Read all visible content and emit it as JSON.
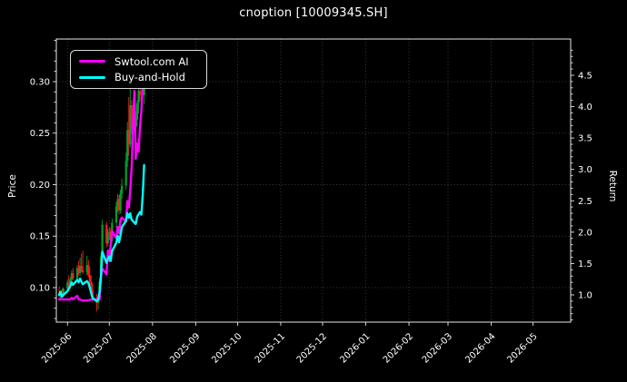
{
  "chart_data": {
    "type": "mixed",
    "subtype": "candlestick-with-lines",
    "title": "cnoption [10009345.SH]",
    "left_axis": {
      "label": "Price",
      "ticks": [
        0.1,
        0.15,
        0.2,
        0.25,
        0.3
      ],
      "range": [
        0.0665,
        0.3414
      ],
      "minor_step": 0.01
    },
    "right_axis": {
      "label": "Return",
      "ticks": [
        1.0,
        1.5,
        2.0,
        2.5,
        3.0,
        3.5,
        4.0,
        4.5
      ],
      "range": [
        0.566,
        5.078
      ],
      "minor_step": 0.1
    },
    "x_axis": {
      "tick_labels": [
        "2025-06",
        "2025-07",
        "2025-08",
        "2025-09",
        "2025-10",
        "2025-11",
        "2025-12",
        "2026-01",
        "2026-02",
        "2026-03",
        "2026-04",
        "2026-05"
      ],
      "tick_days": [
        8,
        38,
        69,
        100,
        130,
        161,
        191,
        222,
        253,
        281,
        312,
        342
      ],
      "range_days": [
        0,
        369
      ],
      "epoch": "2025-05-24"
    },
    "grid": {
      "on": true,
      "style": "dotted"
    },
    "legend": {
      "position": "upper-left",
      "entries": [
        {
          "label": "Swtool.com AI",
          "color": "#ff00ff"
        },
        {
          "label": "Buy-and-Hold",
          "color": "#00ffff"
        }
      ]
    },
    "colors": {
      "background": "#000000",
      "text": "#ffffff",
      "grid": "#3a3a3a",
      "spine": "#e8e8e8",
      "up_candle": "#00a12b",
      "down_candle": "#f22020"
    },
    "candles": [
      [
        2,
        0.095,
        0.101,
        0.09,
        0.092
      ],
      [
        3,
        0.092,
        0.097,
        0.088,
        0.096
      ],
      [
        4,
        0.096,
        0.099,
        0.091,
        0.093
      ],
      [
        5,
        0.093,
        0.1,
        0.092,
        0.099
      ],
      [
        8,
        0.099,
        0.108,
        0.096,
        0.105
      ],
      [
        9,
        0.105,
        0.112,
        0.1,
        0.103
      ],
      [
        10,
        0.103,
        0.11,
        0.099,
        0.108
      ],
      [
        11,
        0.108,
        0.117,
        0.105,
        0.114
      ],
      [
        12,
        0.114,
        0.119,
        0.107,
        0.109
      ],
      [
        15,
        0.109,
        0.122,
        0.106,
        0.119
      ],
      [
        16,
        0.119,
        0.126,
        0.112,
        0.114
      ],
      [
        17,
        0.114,
        0.129,
        0.111,
        0.121
      ],
      [
        18,
        0.121,
        0.133,
        0.115,
        0.117
      ],
      [
        19,
        0.117,
        0.136,
        0.113,
        0.115
      ],
      [
        22,
        0.115,
        0.131,
        0.112,
        0.122
      ],
      [
        23,
        0.122,
        0.127,
        0.11,
        0.112
      ],
      [
        24,
        0.112,
        0.12,
        0.103,
        0.106
      ],
      [
        25,
        0.106,
        0.112,
        0.095,
        0.098
      ],
      [
        26,
        0.098,
        0.104,
        0.087,
        0.09
      ],
      [
        29,
        0.09,
        0.094,
        0.077,
        0.085
      ],
      [
        30,
        0.085,
        0.093,
        0.079,
        0.09
      ],
      [
        31,
        0.09,
        0.109,
        0.088,
        0.106
      ],
      [
        32,
        0.106,
        0.134,
        0.103,
        0.13
      ],
      [
        33,
        0.13,
        0.166,
        0.126,
        0.161
      ],
      [
        36,
        0.161,
        0.164,
        0.139,
        0.143
      ],
      [
        37,
        0.143,
        0.157,
        0.14,
        0.152
      ],
      [
        38,
        0.152,
        0.159,
        0.146,
        0.154
      ],
      [
        39,
        0.154,
        0.158,
        0.142,
        0.146
      ],
      [
        40,
        0.146,
        0.167,
        0.144,
        0.163
      ],
      [
        43,
        0.163,
        0.183,
        0.158,
        0.179
      ],
      [
        44,
        0.179,
        0.191,
        0.173,
        0.186
      ],
      [
        45,
        0.186,
        0.19,
        0.171,
        0.175
      ],
      [
        46,
        0.175,
        0.195,
        0.172,
        0.191
      ],
      [
        47,
        0.191,
        0.206,
        0.186,
        0.199
      ],
      [
        50,
        0.199,
        0.231,
        0.195,
        0.223
      ],
      [
        51,
        0.223,
        0.261,
        0.217,
        0.253
      ],
      [
        52,
        0.253,
        0.285,
        0.228,
        0.239
      ],
      [
        53,
        0.239,
        0.293,
        0.236,
        0.277
      ],
      [
        54,
        0.277,
        0.282,
        0.249,
        0.255
      ],
      [
        57,
        0.255,
        0.271,
        0.246,
        0.263
      ],
      [
        58,
        0.263,
        0.282,
        0.257,
        0.279
      ],
      [
        59,
        0.279,
        0.297,
        0.269,
        0.291
      ],
      [
        60,
        0.291,
        0.299,
        0.281,
        0.287
      ],
      [
        63,
        0.287,
        0.301,
        0.278,
        0.296
      ]
    ],
    "series": [
      {
        "name": "Swtool.com AI",
        "axis": "left",
        "color": "#ff00ff",
        "points": [
          [
            2,
            0.0885
          ],
          [
            5,
            0.0885
          ],
          [
            8,
            0.0885
          ],
          [
            9,
            0.0883
          ],
          [
            10,
            0.0885
          ],
          [
            11,
            0.09
          ],
          [
            12,
            0.0888
          ],
          [
            15,
            0.092
          ],
          [
            16,
            0.0885
          ],
          [
            17,
            0.0885
          ],
          [
            18,
            0.0878
          ],
          [
            19,
            0.0875
          ],
          [
            22,
            0.0875
          ],
          [
            23,
            0.0877
          ],
          [
            24,
            0.088
          ],
          [
            25,
            0.0885
          ],
          [
            26,
            0.0885
          ],
          [
            29,
            0.0885
          ],
          [
            30,
            0.0885
          ],
          [
            31,
            0.0885
          ],
          [
            32,
            0.11
          ],
          [
            33,
            0.1185
          ],
          [
            36,
            0.113
          ],
          [
            37,
            0.136
          ],
          [
            38,
            0.126
          ],
          [
            39,
            0.141
          ],
          [
            40,
            0.155
          ],
          [
            43,
            0.148
          ],
          [
            44,
            0.159
          ],
          [
            45,
            0.153
          ],
          [
            46,
            0.166
          ],
          [
            47,
            0.168
          ],
          [
            50,
            0.164
          ],
          [
            51,
            0.184
          ],
          [
            52,
            0.178
          ],
          [
            53,
            0.194
          ],
          [
            54,
            0.216
          ],
          [
            55,
            0.256
          ],
          [
            56,
            0.291
          ],
          [
            57,
            0.225
          ],
          [
            58,
            0.24
          ],
          [
            59,
            0.232
          ],
          [
            60,
            0.255
          ],
          [
            61,
            0.272
          ],
          [
            62,
            0.3
          ],
          [
            63,
            0.315
          ]
        ]
      },
      {
        "name": "Buy-and-Hold",
        "axis": "right",
        "color": "#00ffff",
        "points": [
          [
            2,
            1.0
          ],
          [
            3,
            1.05
          ],
          [
            4,
            0.97
          ],
          [
            5,
            1.0
          ],
          [
            8,
            1.06
          ],
          [
            9,
            1.1
          ],
          [
            10,
            1.14
          ],
          [
            11,
            1.2
          ],
          [
            12,
            1.16
          ],
          [
            15,
            1.24
          ],
          [
            16,
            1.2
          ],
          [
            17,
            1.26
          ],
          [
            18,
            1.21
          ],
          [
            19,
            1.17
          ],
          [
            22,
            1.22
          ],
          [
            23,
            1.19
          ],
          [
            24,
            1.12
          ],
          [
            25,
            1.03
          ],
          [
            26,
            0.95
          ],
          [
            29,
            0.9
          ],
          [
            30,
            0.92
          ],
          [
            31,
            1.05
          ],
          [
            32,
            1.3
          ],
          [
            33,
            1.69
          ],
          [
            36,
            1.51
          ],
          [
            37,
            1.58
          ],
          [
            38,
            1.61
          ],
          [
            39,
            1.54
          ],
          [
            40,
            1.7
          ],
          [
            43,
            1.83
          ],
          [
            44,
            1.94
          ],
          [
            45,
            1.84
          ],
          [
            46,
            1.95
          ],
          [
            47,
            2.08
          ],
          [
            50,
            2.18
          ],
          [
            51,
            2.3
          ],
          [
            52,
            2.23
          ],
          [
            53,
            2.3
          ],
          [
            54,
            2.2
          ],
          [
            57,
            2.13
          ],
          [
            58,
            2.25
          ],
          [
            60,
            2.32
          ],
          [
            61,
            2.28
          ],
          [
            62,
            2.6
          ],
          [
            63,
            3.07
          ]
        ]
      }
    ]
  }
}
